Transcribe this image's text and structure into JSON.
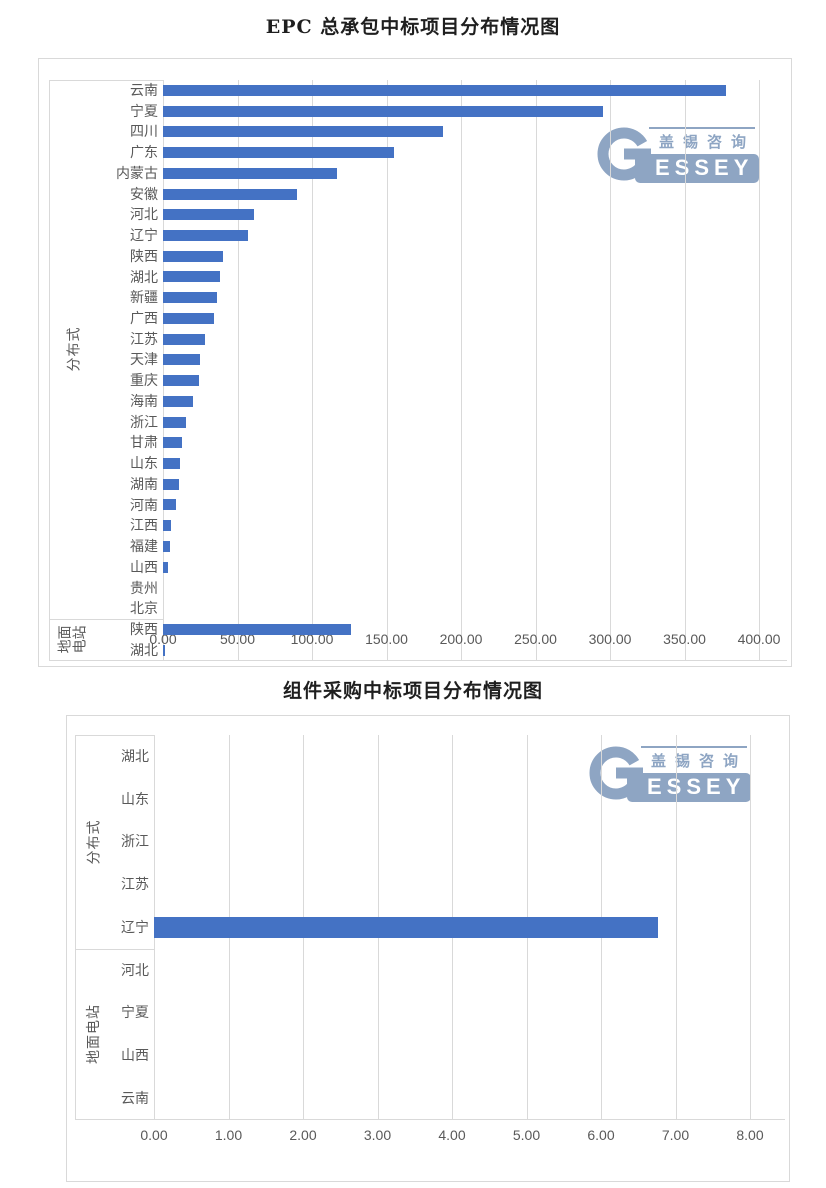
{
  "colors": {
    "background": "#FFFFFF",
    "bar": "#4472C4",
    "gridline": "#D9D9D9",
    "chart_border": "#D9D9D9",
    "axis_text": "#595959",
    "title_text": "#1F1F1F",
    "logo": "#8EA5C3"
  },
  "logo": {
    "chinese": "盖锡咨询",
    "english": "ESSEY",
    "monogram": "G"
  },
  "chart_data": [
    {
      "type": "bar",
      "orientation": "horizontal",
      "title": "EPC 总承包中标项目分布情况图",
      "legend": "none",
      "grid": true,
      "axis": {
        "min": 0,
        "max": 400,
        "step": 50,
        "tick_labels": [
          "0.00",
          "50.00",
          "100.00",
          "150.00",
          "200.00",
          "250.00",
          "300.00",
          "350.00",
          "400.00"
        ]
      },
      "groups": [
        {
          "label": "分布式",
          "categories": [
            "云南",
            "宁夏",
            "四川",
            "广东",
            "内蒙古",
            "安徽",
            "河北",
            "辽宁",
            "陕西",
            "湖北",
            "新疆",
            "广西",
            "江苏",
            "天津",
            "重庆",
            "海南",
            "浙江",
            "甘肃",
            "山东",
            "湖南",
            "河南",
            "江西",
            "福建",
            "山西",
            "贵州",
            "北京"
          ],
          "values": [
            378,
            295,
            188,
            155,
            117,
            90,
            61,
            57,
            40,
            38.5,
            36,
            34.5,
            28.5,
            25,
            24,
            20.4,
            15.4,
            13,
            11.2,
            10.5,
            9,
            5.6,
            5,
            3.6,
            0,
            0
          ]
        },
        {
          "label": "地面电站",
          "categories": [
            "陕西",
            "湖北"
          ],
          "values": [
            126,
            1.6
          ]
        }
      ]
    },
    {
      "type": "bar",
      "orientation": "horizontal",
      "title": "组件采购中标项目分布情况图",
      "legend": "none",
      "grid": true,
      "axis": {
        "min": 0,
        "max": 8,
        "step": 1,
        "tick_labels": [
          "0.00",
          "1.00",
          "2.00",
          "3.00",
          "4.00",
          "5.00",
          "6.00",
          "7.00",
          "8.00"
        ]
      },
      "groups": [
        {
          "label": "分布式",
          "categories": [
            "湖北",
            "山东",
            "浙江",
            "江苏",
            "辽宁"
          ],
          "values": [
            0,
            0,
            0,
            0,
            6.76
          ]
        },
        {
          "label": "地面电站",
          "categories": [
            "河北",
            "宁夏",
            "山西",
            "云南"
          ],
          "values": [
            0,
            0,
            0,
            0
          ]
        }
      ]
    }
  ]
}
